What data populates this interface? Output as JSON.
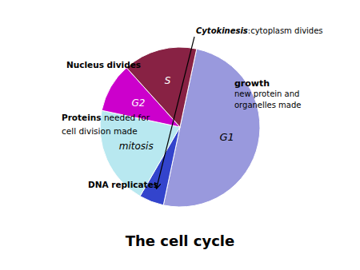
{
  "chart_data": {
    "type": "pie",
    "title": "The cell cycle",
    "categories": [
      "G1",
      null,
      "mitosis",
      "G2",
      "S"
    ],
    "values": [
      50,
      5,
      20,
      10,
      15
    ],
    "colors": [
      "#9999dd",
      "#3344cc",
      "#b8e8f0",
      "#cc00cc",
      "#882244"
    ],
    "annotations": [
      "Cytokinesis",
      ":cytoplasm divides",
      "Nucleus divides",
      "growth",
      "new protein and\norganelles made",
      "Proteins",
      " needed for",
      "cell division made",
      "DNA replicates"
    ]
  }
}
